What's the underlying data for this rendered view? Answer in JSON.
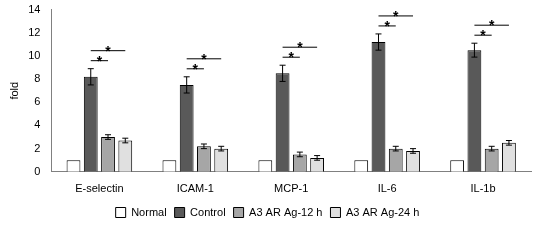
{
  "chart_data": {
    "type": "bar",
    "y_label": "fold",
    "categories": [
      "E-selectin",
      "ICAM-1",
      "MCP-1",
      "IL-6",
      "IL-1b"
    ],
    "series": [
      {
        "name": "Normal",
        "color": "#ffffff",
        "values": [
          1,
          1,
          1,
          1,
          1
        ]
      },
      {
        "name": "Control",
        "color": "#595959",
        "values": [
          8.2,
          7.5,
          8.5,
          11.2,
          10.5
        ],
        "errors": [
          0.7,
          0.7,
          0.7,
          0.7,
          0.6
        ]
      },
      {
        "name": "A3 AR Ag-12 h",
        "color": "#a6a6a6",
        "values": [
          3.0,
          2.2,
          1.5,
          2.0,
          2.0
        ],
        "errors": [
          0.2,
          0.2,
          0.2,
          0.2,
          0.2
        ]
      },
      {
        "name": "A3 AR Ag-24 h",
        "color": "#e0e0e0",
        "values": [
          2.7,
          2.0,
          1.2,
          1.8,
          2.5
        ],
        "errors": [
          0.2,
          0.2,
          0.2,
          0.2,
          0.2
        ]
      }
    ],
    "annotations": [
      {
        "category": "E-selectin",
        "from": "Control",
        "to": "A3 AR Ag-12 h",
        "text": "*"
      },
      {
        "category": "E-selectin",
        "from": "Control",
        "to": "A3 AR Ag-24 h",
        "text": "*"
      },
      {
        "category": "ICAM-1",
        "from": "Control",
        "to": "A3 AR Ag-12 h",
        "text": "*"
      },
      {
        "category": "ICAM-1",
        "from": "Control",
        "to": "A3 AR Ag-24 h",
        "text": "*"
      },
      {
        "category": "MCP-1",
        "from": "Control",
        "to": "A3 AR Ag-12 h",
        "text": "*"
      },
      {
        "category": "MCP-1",
        "from": "Control",
        "to": "A3 AR Ag-24 h",
        "text": "*"
      },
      {
        "category": "IL-6",
        "from": "Control",
        "to": "A3 AR Ag-12 h",
        "text": "*"
      },
      {
        "category": "IL-6",
        "from": "Control",
        "to": "A3 AR Ag-24 h",
        "text": "*"
      },
      {
        "category": "IL-1b",
        "from": "Control",
        "to": "A3 AR Ag-12 h",
        "text": "*"
      },
      {
        "category": "IL-1b",
        "from": "Control",
        "to": "A3 AR Ag-24 h",
        "text": "*"
      }
    ],
    "ylim": [
      0,
      14
    ],
    "yticks": [
      0,
      2,
      4,
      6,
      8,
      10,
      12,
      14
    ],
    "grid": false,
    "legend": "bottom"
  }
}
